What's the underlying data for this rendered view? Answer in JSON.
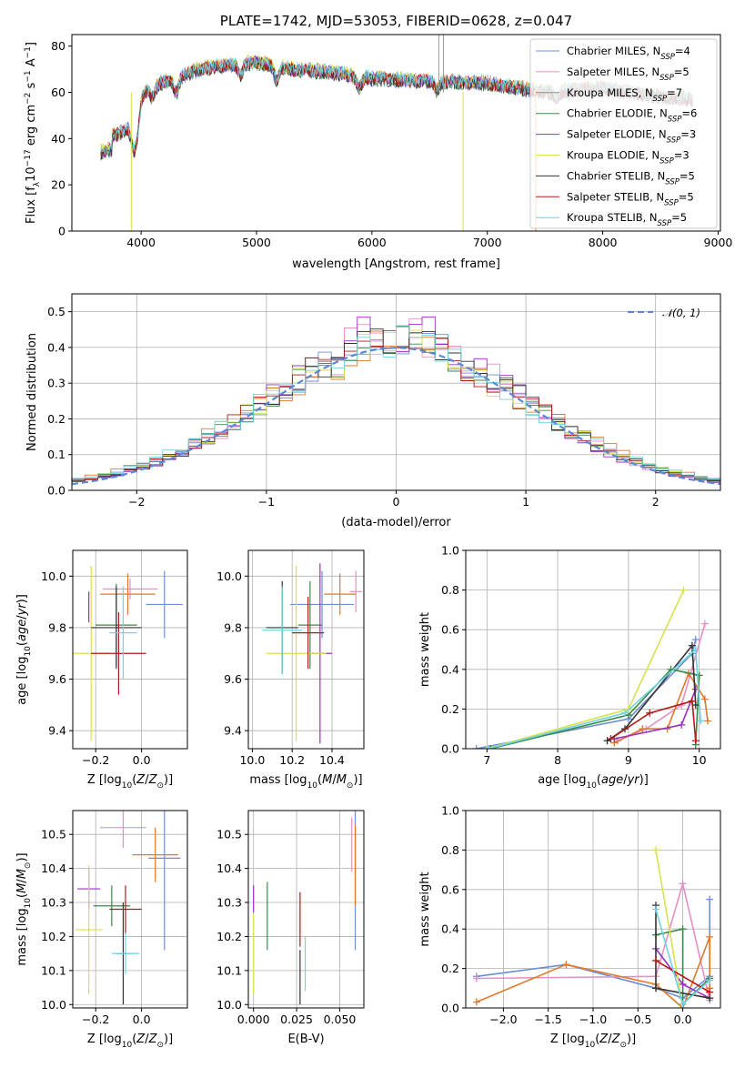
{
  "chart_data": [
    {
      "type": "line",
      "id": "spectrum",
      "title": "PLATE=1742, MJD=53053, FIBERID=0628, z=0.047",
      "xlabel": "wavelength [Angstrom, rest frame]",
      "ylabel": "Flux [f_λ10^-17 erg cm^-2 s^-1 A^-1]",
      "xlim": [
        3400,
        9020
      ],
      "ylim": [
        0,
        85
      ],
      "xticks": [
        "4000",
        "5000",
        "6000",
        "7000",
        "8000",
        "9000"
      ],
      "yticks": [
        "0",
        "20",
        "40",
        "60",
        "80"
      ],
      "legend_position": "upper-right",
      "series": [
        {
          "name": "Chabrier MILES, N_SSP=4",
          "color": "#6b8fd6"
        },
        {
          "name": "Salpeter MILES, N_SSP=5",
          "color": "#e68fc3"
        },
        {
          "name": "Kroupa MILES, N_SSP=7",
          "color": "#e0792a"
        },
        {
          "name": "Chabrier ELODIE, N_SSP=6",
          "color": "#3a8a47"
        },
        {
          "name": "Salpeter ELODIE, N_SSP=3",
          "color": "#9b2fc4"
        },
        {
          "name": "Kroupa ELODIE, N_SSP=3",
          "color": "#d8e24a"
        },
        {
          "name": "Chabrier STELIB, N_SSP=5",
          "color": "#333333"
        },
        {
          "name": "Salpeter STELIB, N_SSP=5",
          "color": "#b01a1a"
        },
        {
          "name": "Kroupa STELIB, N_SSP=5",
          "color": "#6fd3e3"
        }
      ],
      "continuum": {
        "x": [
          3650,
          3800,
          3900,
          4000,
          4100,
          4300,
          4500,
          4800,
          5000,
          5300,
          5600,
          6000,
          6500,
          7000,
          7500,
          8000,
          8500,
          8800
        ],
        "y": [
          40,
          42,
          45,
          58,
          63,
          66,
          70,
          72,
          73,
          70,
          69,
          66,
          65,
          64,
          60,
          62,
          58,
          57
        ]
      }
    },
    {
      "type": "area",
      "id": "residuals",
      "xlabel": "(data-model)/error",
      "ylabel": "Normed distribution",
      "xlim": [
        -2.5,
        2.5
      ],
      "ylim": [
        0,
        0.55
      ],
      "xticks": [
        "−2",
        "−1",
        "0",
        "1",
        "2"
      ],
      "yticks": [
        "0.0",
        "0.1",
        "0.2",
        "0.3",
        "0.4",
        "0.5"
      ],
      "legend": {
        "label": "𝒩(0, 1)",
        "position": "upper-right",
        "color": "#5b87d6"
      },
      "bin_width": 0.1,
      "dist": "N(0,1)"
    },
    {
      "type": "scatter",
      "id": "z-age",
      "xlabel": "Z [log10(Z/Z⊙)]",
      "ylabel": "age  [log10(age/yr)]",
      "xlim": [
        -0.3,
        0.2
      ],
      "ylim": [
        9.33,
        10.1
      ],
      "xticks": [
        "−0.2",
        "0.0"
      ],
      "yticks": [
        "9.4",
        "9.6",
        "9.8",
        "10.0"
      ],
      "points": [
        {
          "x": 0.1,
          "y": 9.89,
          "xerr": 0.08,
          "yerr": 0.13,
          "c": "#6b8fd6"
        },
        {
          "x": -0.05,
          "y": 9.95,
          "xerr": 0.12,
          "yerr": 0.04,
          "c": "#e68fc3"
        },
        {
          "x": -0.06,
          "y": 9.93,
          "xerr": 0.12,
          "yerr": 0.08,
          "c": "#e0792a"
        },
        {
          "x": -0.11,
          "y": 9.81,
          "xerr": 0.09,
          "yerr": 0.16,
          "c": "#3a8a47"
        },
        {
          "x": -0.23,
          "y": 9.88,
          "xerr": 0.0,
          "yerr": 0.06,
          "c": "#9b2fc4"
        },
        {
          "x": -0.22,
          "y": 9.7,
          "xerr": 0.08,
          "yerr": 0.34,
          "c": "#d8e24a"
        },
        {
          "x": -0.11,
          "y": 9.8,
          "xerr": 0.11,
          "yerr": 0.16,
          "c": "#333333"
        },
        {
          "x": -0.1,
          "y": 9.7,
          "xerr": 0.12,
          "yerr": 0.16,
          "c": "#b01a1a"
        },
        {
          "x": -0.08,
          "y": 9.78,
          "xerr": 0.06,
          "yerr": 0.18,
          "c": "#6fd3e3"
        }
      ]
    },
    {
      "type": "scatter",
      "id": "mass-age",
      "xlabel": "mass [log10(M/M⊙)]",
      "ylabel": "",
      "xlim": [
        9.98,
        10.56
      ],
      "ylim": [
        9.33,
        10.1
      ],
      "xticks": [
        "10.0",
        "10.2",
        "10.4"
      ],
      "yticks": [
        "9.4",
        "9.6",
        "9.8",
        "10.0"
      ],
      "points": [
        {
          "x": 10.35,
          "y": 9.89,
          "xerr": 0.16,
          "yerr": 0.13,
          "c": "#6b8fd6"
        },
        {
          "x": 10.52,
          "y": 9.94,
          "xerr": 0.03,
          "yerr": 0.08,
          "c": "#e68fc3"
        },
        {
          "x": 10.44,
          "y": 9.93,
          "xerr": 0.08,
          "yerr": 0.08,
          "c": "#e0792a"
        },
        {
          "x": 10.29,
          "y": 9.81,
          "xerr": 0.06,
          "yerr": 0.17,
          "c": "#3a8a47"
        },
        {
          "x": 10.34,
          "y": 9.7,
          "xerr": 0.06,
          "yerr": 0.35,
          "c": "#9b2fc4"
        },
        {
          "x": 10.22,
          "y": 9.7,
          "xerr": 0.15,
          "yerr": 0.34,
          "c": "#d8e24a"
        },
        {
          "x": 10.15,
          "y": 9.8,
          "xerr": 0.08,
          "yerr": 0.18,
          "c": "#333333"
        },
        {
          "x": 10.28,
          "y": 9.78,
          "xerr": 0.08,
          "yerr": 0.14,
          "c": "#b01a1a"
        },
        {
          "x": 10.15,
          "y": 9.79,
          "xerr": 0.1,
          "yerr": 0.17,
          "c": "#6fd3e3"
        }
      ]
    },
    {
      "type": "line",
      "id": "age-weight",
      "xlabel": "age  [log10(age/yr)]",
      "ylabel": "mass weight",
      "xlim": [
        6.7,
        10.3
      ],
      "ylim": [
        0,
        1.0
      ],
      "xticks": [
        "7",
        "8",
        "9",
        "10"
      ],
      "yticks": [
        "0.0",
        "0.2",
        "0.4",
        "0.6",
        "0.8",
        "1.0"
      ],
      "series": [
        {
          "c": "#6b8fd6",
          "x": [
            6.85,
            9.0,
            9.9,
            9.95
          ],
          "y": [
            0.0,
            0.15,
            0.48,
            0.55
          ]
        },
        {
          "c": "#e68fc3",
          "x": [
            8.85,
            9.25,
            9.75,
            10.08
          ],
          "y": [
            0.04,
            0.1,
            0.22,
            0.63
          ]
        },
        {
          "c": "#e0792a",
          "x": [
            8.8,
            9.2,
            9.55,
            9.85,
            10.08,
            10.12
          ],
          "y": [
            0.03,
            0.1,
            0.1,
            0.38,
            0.25,
            0.14
          ]
        },
        {
          "c": "#3a8a47",
          "x": [
            7.05,
            9.0,
            9.6,
            10.0,
            9.95
          ],
          "y": [
            0.0,
            0.17,
            0.4,
            0.37,
            0.02
          ]
        },
        {
          "c": "#9b2fc4",
          "x": [
            8.8,
            9.75,
            9.95
          ],
          "y": [
            0.05,
            0.12,
            0.3
          ]
        },
        {
          "c": "#d8e24a",
          "x": [
            7.0,
            9.0,
            9.78
          ],
          "y": [
            0.0,
            0.2,
            0.8
          ]
        },
        {
          "c": "#333333",
          "x": [
            8.7,
            8.95,
            9.9,
            9.95
          ],
          "y": [
            0.04,
            0.1,
            0.52,
            0.22
          ]
        },
        {
          "c": "#b01a1a",
          "x": [
            8.75,
            9.3,
            9.9,
            9.95
          ],
          "y": [
            0.05,
            0.18,
            0.24,
            0.04
          ]
        },
        {
          "c": "#6fd3e3",
          "x": [
            7.02,
            8.95,
            9.95,
            10.02
          ],
          "y": [
            0.0,
            0.18,
            0.5,
            0.14
          ]
        }
      ]
    },
    {
      "type": "scatter",
      "id": "z-mass",
      "xlabel": "Z [log10(Z/Z⊙)]",
      "ylabel": "mass [log10(M/M⊙)]",
      "xlim": [
        -0.3,
        0.2
      ],
      "ylim": [
        9.99,
        10.57
      ],
      "xticks": [
        "−0.2",
        "0.0"
      ],
      "yticks": [
        "10.0",
        "10.1",
        "10.2",
        "10.3",
        "10.4",
        "10.5"
      ],
      "points": [
        {
          "x": 0.1,
          "y": 10.43,
          "xerr": 0.07,
          "yerr": 0.27,
          "c": "#6b8fd6"
        },
        {
          "x": -0.08,
          "y": 10.52,
          "xerr": 0.1,
          "yerr": 0.06,
          "c": "#e68fc3"
        },
        {
          "x": 0.06,
          "y": 10.44,
          "xerr": 0.1,
          "yerr": 0.08,
          "c": "#e0792a"
        },
        {
          "x": -0.13,
          "y": 10.29,
          "xerr": 0.08,
          "yerr": 0.06,
          "c": "#3a8a47"
        },
        {
          "x": -0.23,
          "y": 10.34,
          "xerr": 0.05,
          "yerr": 0.06,
          "c": "#9b2fc4"
        },
        {
          "x": -0.23,
          "y": 10.22,
          "xerr": 0.06,
          "yerr": 0.19,
          "c": "#d8e24a"
        },
        {
          "x": -0.08,
          "y": 10.15,
          "xerr": 0.03,
          "yerr": 0.15,
          "c": "#333333"
        },
        {
          "x": -0.07,
          "y": 10.28,
          "xerr": 0.07,
          "yerr": 0.07,
          "c": "#b01a1a"
        },
        {
          "x": -0.07,
          "y": 10.15,
          "xerr": 0.06,
          "yerr": 0.06,
          "c": "#6fd3e3"
        }
      ]
    },
    {
      "type": "scatter",
      "id": "ebv-mass",
      "xlabel": "E(B-V)",
      "ylabel": "",
      "xlim": [
        -0.003,
        0.064
      ],
      "ylim": [
        9.99,
        10.57
      ],
      "xticks": [
        "0.000",
        "0.025",
        "0.050"
      ],
      "yticks": [
        "10.0",
        "10.1",
        "10.2",
        "10.3",
        "10.4",
        "10.5"
      ],
      "points": [
        {
          "x": 0.059,
          "y": 10.43,
          "yerr": 0.27,
          "c": "#6b8fd6"
        },
        {
          "x": 0.057,
          "y": 10.47,
          "yerr": 0.08,
          "c": "#e68fc3"
        },
        {
          "x": 0.059,
          "y": 10.41,
          "yerr": 0.12,
          "c": "#e0792a"
        },
        {
          "x": 0.008,
          "y": 10.26,
          "yerr": 0.1,
          "c": "#3a8a47"
        },
        {
          "x": 0.0,
          "y": 10.31,
          "yerr": 0.04,
          "c": "#9b2fc4"
        },
        {
          "x": 0.0,
          "y": 10.15,
          "yerr": 0.12,
          "c": "#d8e24a"
        },
        {
          "x": 0.027,
          "y": 10.08,
          "yerr": 0.08,
          "c": "#333333"
        },
        {
          "x": 0.027,
          "y": 10.25,
          "yerr": 0.08,
          "c": "#b01a1a"
        },
        {
          "x": 0.03,
          "y": 10.12,
          "yerr": 0.08,
          "c": "#6fd3e3"
        }
      ]
    },
    {
      "type": "line",
      "id": "z-weight",
      "xlabel": "Z [log10(Z/Z⊙)]",
      "ylabel": "mass weight",
      "xlim": [
        -2.42,
        0.42
      ],
      "ylim": [
        0,
        1.0
      ],
      "xticks": [
        "−2.0",
        "−1.5",
        "−1.0",
        "−0.5",
        "0.0"
      ],
      "yticks": [
        "0.0",
        "0.2",
        "0.4",
        "0.6",
        "0.8",
        "1.0"
      ],
      "series": [
        {
          "c": "#6b8fd6",
          "x": [
            -2.3,
            -1.3,
            -0.3,
            0.0,
            0.3,
            0.3
          ],
          "y": [
            0.16,
            0.22,
            0.1,
            0.05,
            0.16,
            0.55
          ]
        },
        {
          "c": "#e68fc3",
          "x": [
            -2.3,
            -0.3,
            0.0,
            0.3
          ],
          "y": [
            0.15,
            0.16,
            0.63,
            0.04
          ]
        },
        {
          "c": "#e0792a",
          "x": [
            -2.3,
            -1.3,
            -0.3,
            0.0,
            0.3,
            0.3
          ],
          "y": [
            0.03,
            0.22,
            0.12,
            0.0,
            0.36,
            0.1
          ]
        },
        {
          "c": "#3a8a47",
          "x": [
            -0.3,
            0.0,
            0.0,
            0.3
          ],
          "y": [
            0.37,
            0.4,
            0.02,
            0.15
          ]
        },
        {
          "c": "#9b2fc4",
          "x": [
            -0.3,
            0.0,
            0.3
          ],
          "y": [
            0.3,
            0.12,
            0.05
          ]
        },
        {
          "c": "#d8e24a",
          "x": [
            -0.3,
            0.0
          ],
          "y": [
            0.8,
            0.0
          ]
        },
        {
          "c": "#333333",
          "x": [
            -0.3,
            -0.3,
            0.3
          ],
          "y": [
            0.52,
            0.1,
            0.05
          ]
        },
        {
          "c": "#b01a1a",
          "x": [
            -0.3,
            0.3
          ],
          "y": [
            0.24,
            0.08
          ]
        },
        {
          "c": "#6fd3e3",
          "x": [
            -0.3,
            0.0,
            0.3
          ],
          "y": [
            0.5,
            0.02,
            0.14
          ]
        }
      ]
    }
  ]
}
